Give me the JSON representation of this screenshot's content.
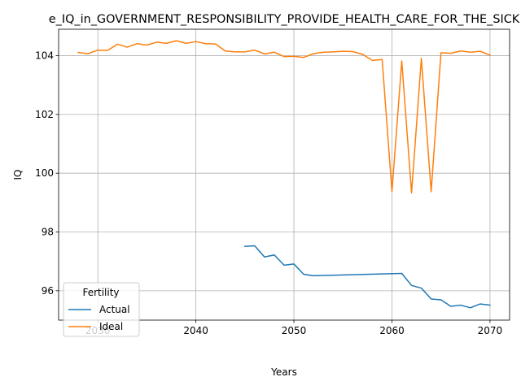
{
  "chart_data": {
    "type": "line",
    "title": "e_IQ_in_GOVERNMENT_RESPONSIBILITY_PROVIDE_HEALTH_CARE_FOR_THE_SICK",
    "xlabel": "Years",
    "ylabel": "IQ",
    "xlim": [
      2026,
      2072
    ],
    "ylim": [
      95.0,
      104.9
    ],
    "xticks": [
      2030,
      2040,
      2050,
      2060,
      2070
    ],
    "yticks": [
      96,
      98,
      100,
      102,
      104
    ],
    "grid": true,
    "legend": {
      "title": "Fertility",
      "placement": "lower-left"
    },
    "series": [
      {
        "name": "Actual",
        "color": "#1f77b4",
        "x": [
          2045,
          2046,
          2047,
          2048,
          2049,
          2050,
          2051,
          2052,
          2061,
          2062,
          2063,
          2064,
          2065,
          2066,
          2067,
          2068,
          2069,
          2070
        ],
        "y": [
          97.51,
          97.53,
          97.15,
          97.22,
          96.87,
          96.91,
          96.56,
          96.51,
          96.59,
          96.18,
          96.09,
          95.72,
          95.69,
          95.47,
          95.51,
          95.42,
          95.55,
          95.51
        ]
      },
      {
        "name": "Ideal",
        "color": "#ff7f0e",
        "x": [
          2028,
          2029,
          2030,
          2031,
          2032,
          2033,
          2034,
          2035,
          2036,
          2037,
          2038,
          2039,
          2040,
          2041,
          2042,
          2043,
          2044,
          2045,
          2046,
          2047,
          2048,
          2049,
          2050,
          2051,
          2052,
          2053,
          2054,
          2055,
          2056,
          2057,
          2058,
          2059,
          2060,
          2061,
          2062,
          2063,
          2064,
          2065,
          2066,
          2067,
          2068,
          2069,
          2070
        ],
        "y": [
          104.11,
          104.07,
          104.19,
          104.18,
          104.39,
          104.29,
          104.41,
          104.36,
          104.46,
          104.42,
          104.51,
          104.42,
          104.48,
          104.41,
          104.4,
          104.16,
          104.13,
          104.13,
          104.19,
          104.06,
          104.12,
          103.97,
          103.98,
          103.94,
          104.07,
          104.12,
          104.13,
          104.15,
          104.14,
          104.05,
          103.84,
          103.87,
          99.37,
          103.82,
          99.33,
          103.91,
          99.37,
          104.1,
          104.08,
          104.16,
          104.12,
          104.15,
          104.02
        ]
      }
    ]
  }
}
